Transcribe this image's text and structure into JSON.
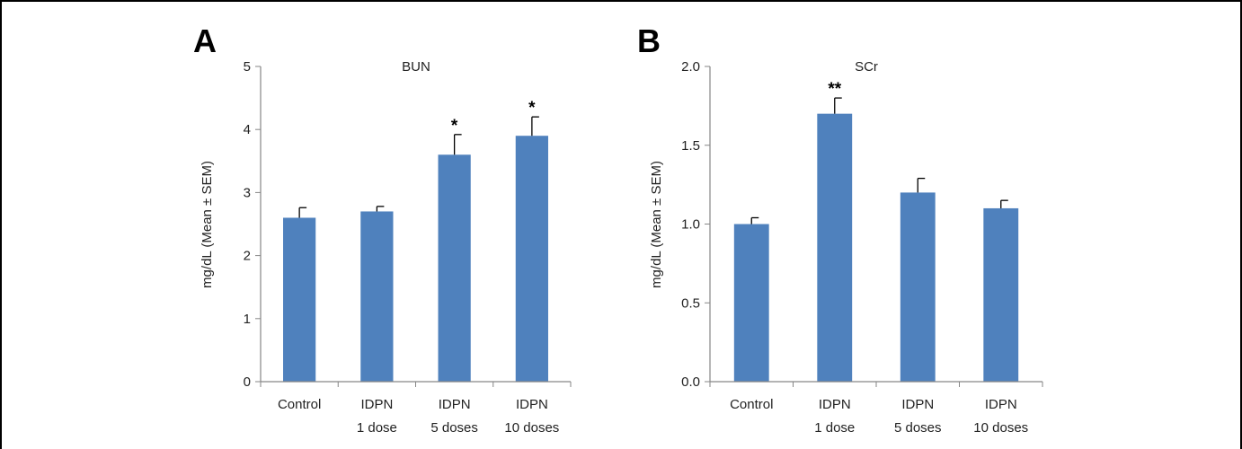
{
  "figure": {
    "border_color": "#000000"
  },
  "chart_data": [
    {
      "panel": "A",
      "type": "bar",
      "title": "BUN",
      "ylabel": "mg/dL (Mean ± SEM)",
      "ylim": [
        0,
        5
      ],
      "yticks": [
        "0",
        "1",
        "2",
        "3",
        "4",
        "5"
      ],
      "ytick_values": [
        0,
        1,
        2,
        3,
        4,
        5
      ],
      "categories": [
        [
          "Control"
        ],
        [
          "IDPN",
          "1 dose"
        ],
        [
          "IDPN",
          "5 doses"
        ],
        [
          "IDPN",
          "10 doses"
        ]
      ],
      "values": [
        2.6,
        2.7,
        3.6,
        3.9
      ],
      "errors": [
        0.16,
        0.08,
        0.32,
        0.3
      ],
      "significance": [
        "",
        "",
        "*",
        "*"
      ],
      "bar_color": "#4f81bd",
      "grid": false,
      "legend": "none"
    },
    {
      "panel": "B",
      "type": "bar",
      "title": "SCr",
      "ylabel": "mg/dL (Mean ± SEM)",
      "ylim": [
        0,
        2
      ],
      "yticks": [
        "0.0",
        "0.5",
        "1.0",
        "1.5",
        "2.0"
      ],
      "ytick_values": [
        0,
        0.5,
        1,
        1.5,
        2
      ],
      "categories": [
        [
          "Control"
        ],
        [
          "IDPN",
          "1 dose"
        ],
        [
          "IDPN",
          "5 doses"
        ],
        [
          "IDPN",
          "10 doses"
        ]
      ],
      "values": [
        1.0,
        1.7,
        1.2,
        1.1
      ],
      "errors": [
        0.04,
        0.1,
        0.09,
        0.05
      ],
      "significance": [
        "",
        "**",
        "",
        ""
      ],
      "bar_color": "#4f81bd",
      "grid": false,
      "legend": "none"
    }
  ]
}
